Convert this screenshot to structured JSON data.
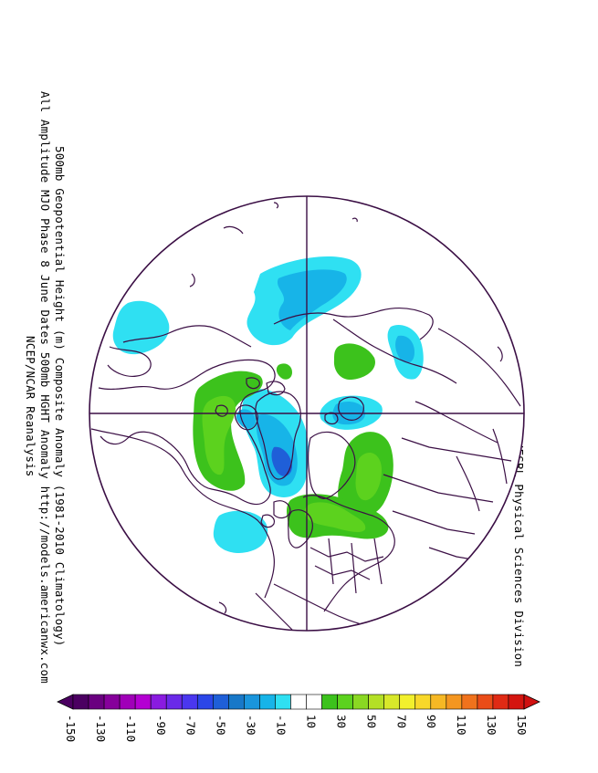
{
  "title_lines": [
    "500mb Geopotential Height (m) Composite Anomaly (1981-2010 Climatology)",
    "All Amplitude MJO Phase 8 June Dates 500mb HGHT Anomaly http://models.americanwx.com",
    "NCEP/NCAR Reanalysis"
  ],
  "credit": "NOAA/ESRL Physical Sciences Division",
  "map": {
    "projection": "north-polar-stereographic",
    "ocean_color": "#ffffff",
    "coastline_color": "#3b0f45"
  },
  "colorbar": {
    "labels": [
      "-150",
      "-130",
      "-110",
      "-90",
      "-70",
      "-50",
      "-30",
      "-10",
      "10",
      "30",
      "50",
      "70",
      "90",
      "110",
      "130",
      "150"
    ],
    "colors": [
      "#4b0061",
      "#6a0080",
      "#86009b",
      "#a000b8",
      "#b400d2",
      "#8a1be0",
      "#6a2ae8",
      "#4a37ef",
      "#2b46e8",
      "#1f5fd8",
      "#1878c8",
      "#1a95dc",
      "#17b4e8",
      "#2fe0f2",
      "#ffffff",
      "#ffffff",
      "#3cc21c",
      "#5cd21e",
      "#8ad822",
      "#b4e026",
      "#d8e82a",
      "#f2f02c",
      "#f8d82a",
      "#f6b824",
      "#f49620",
      "#f0721c",
      "#ea4c18",
      "#e02a14",
      "#d4150f"
    ],
    "under_color": "#4b0061",
    "over_color": "#d01010"
  }
}
